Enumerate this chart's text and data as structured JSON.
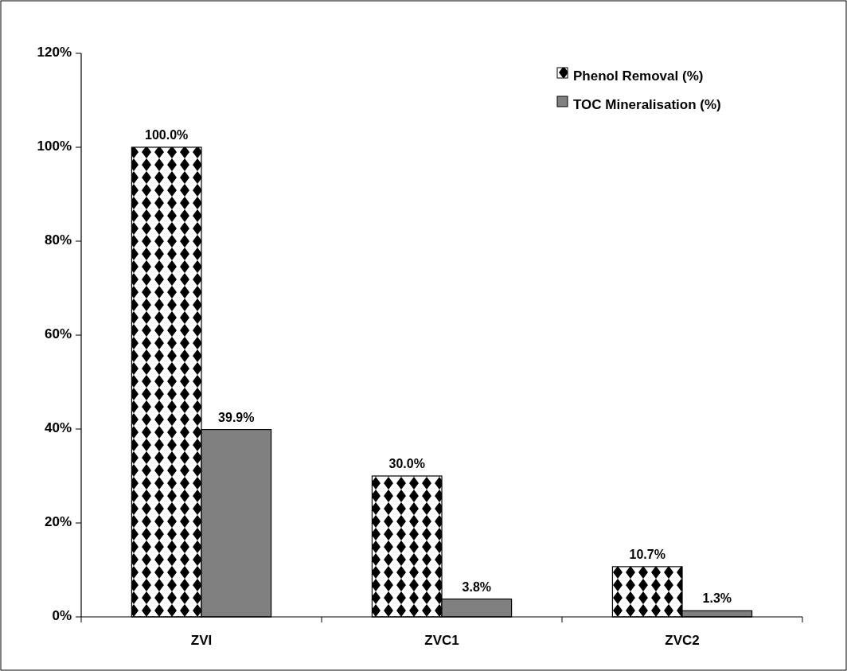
{
  "chart_data": {
    "type": "bar",
    "categories": [
      "ZVI",
      "ZVC1",
      "ZVC2"
    ],
    "series": [
      {
        "name": "Phenol Removal (%)",
        "color": "#000000",
        "values": [
          100,
          30,
          10.7
        ],
        "value_labels": [
          "100.0%",
          "30.0%",
          "10.7%"
        ]
      },
      {
        "name": "TOC Mineralisation (%)",
        "color": "#808080",
        "values": [
          39.9,
          3.8,
          1.3
        ],
        "value_labels": [
          "39.9%",
          "3.8%",
          "1.3%"
        ]
      }
    ],
    "ylim": [
      0,
      120
    ],
    "yticks": [
      {
        "value": 0,
        "label": "0%"
      },
      {
        "value": 20,
        "label": "20%"
      },
      {
        "value": 40,
        "label": "40%"
      },
      {
        "value": 60,
        "label": "60%"
      },
      {
        "value": 80,
        "label": "80%"
      },
      {
        "value": 100,
        "label": "100%"
      },
      {
        "value": 120,
        "label": "120%"
      }
    ],
    "legend": "top right",
    "grid": false
  }
}
